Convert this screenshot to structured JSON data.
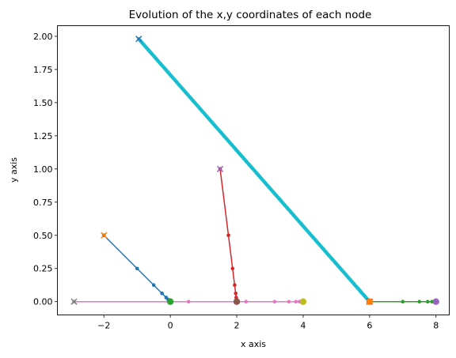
{
  "chart_data": {
    "type": "scatter",
    "title": "Evolution of the x,y coordinates of each node",
    "xlabel": "x axis",
    "ylabel": "y axis",
    "xlim": [
      -3.4,
      8.4
    ],
    "ylim": [
      -0.1,
      2.08
    ],
    "xticks": [
      -2,
      0,
      2,
      4,
      6,
      8
    ],
    "yticks": [
      0.0,
      0.25,
      0.5,
      0.75,
      1.0,
      1.25,
      1.5,
      1.75,
      2.0
    ],
    "xtick_labels": [
      "−2",
      "0",
      "2",
      "4",
      "6",
      "8"
    ],
    "ytick_labels": [
      "0.00",
      "0.25",
      "0.50",
      "0.75",
      "1.00",
      "1.25",
      "1.50",
      "1.75",
      "2.00"
    ],
    "grid": false,
    "series": [
      {
        "color": "#1f77b4",
        "start_color": "#ff7f0e",
        "end_color": "#2ca02c",
        "x": [
          -2.0,
          -1.0,
          -0.5,
          -0.25,
          -0.125,
          -0.0625,
          0.0
        ],
        "y": [
          0.5,
          0.25,
          0.125,
          0.0625,
          0.03125,
          0.015625,
          0.0
        ]
      },
      {
        "color": "#d62728",
        "start_color": "#9467bd",
        "end_color": "#8c564b",
        "x": [
          1.5,
          1.75,
          1.875,
          1.9375,
          1.96875,
          1.984375,
          2.0
        ],
        "y": [
          1.0,
          0.5,
          0.25,
          0.125,
          0.0625,
          0.03125,
          0.0
        ]
      },
      {
        "color": "#e377c2",
        "start_color": "#7f7f7f",
        "end_color": "#bcbd22",
        "x": [
          -2.9,
          0.55,
          2.28,
          3.14,
          3.57,
          3.78,
          3.89,
          4.0
        ],
        "y": [
          0.0,
          0.0,
          0.0,
          0.0,
          0.0,
          0.0,
          0.0,
          0.0
        ]
      },
      {
        "color": "#2ca02c",
        "start_color": "#d62728",
        "end_color": "#9467bd",
        "x": [
          6.0,
          7.0,
          7.5,
          7.75,
          7.88,
          8.0
        ],
        "y": [
          0.0,
          0.0,
          0.0,
          0.0,
          0.0,
          0.0
        ]
      },
      {
        "color": "#17becf",
        "start_color": "#1f77b4",
        "end_color": "#ff7f0e",
        "x_start": -0.95,
        "y_start": 1.98,
        "x_end": 6.0,
        "y_end": 0.0,
        "marker_count": 220
      }
    ]
  }
}
